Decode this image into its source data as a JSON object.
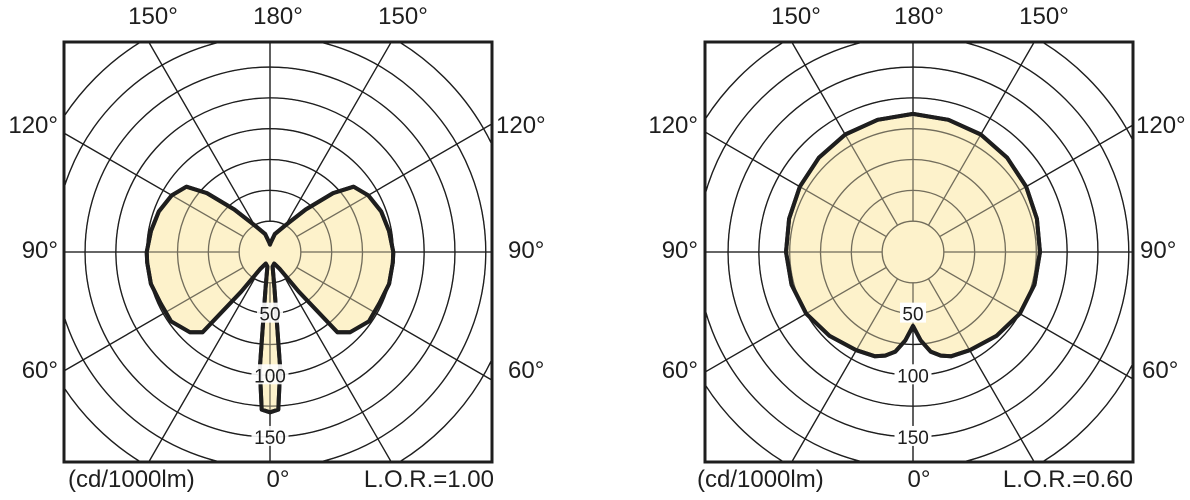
{
  "chart_data": [
    {
      "type": "polar",
      "unit_label": "(cd/1000lm)",
      "lor_label": "L.O.R.=1.00",
      "angle_labels": {
        "top_left": "150°",
        "top_center": "180°",
        "top_right": "150°",
        "upper_left": "120°",
        "upper_right": "120°",
        "mid_left": "90°",
        "mid_right": "90°",
        "lower_left": "60°",
        "lower_right": "60°",
        "bottom_center": "0°"
      },
      "radial_ticks": [
        {
          "value": 50,
          "label": "50"
        },
        {
          "value": 100,
          "label": "100"
        },
        {
          "value": 150,
          "label": "150"
        }
      ],
      "rlim": [
        0,
        150
      ],
      "spoke_step_deg": 30,
      "fill_color": "#fdf0c2",
      "curve_color": "#1e1e1e",
      "curve": [
        [
          0,
          130
        ],
        [
          3,
          128
        ],
        [
          5,
          95
        ],
        [
          7,
          30
        ],
        [
          10,
          12
        ],
        [
          20,
          10
        ],
        [
          30,
          16
        ],
        [
          36,
          40
        ],
        [
          40,
          85
        ],
        [
          45,
          92
        ],
        [
          55,
          98
        ],
        [
          65,
          98
        ],
        [
          75,
          100
        ],
        [
          85,
          100
        ],
        [
          90,
          100
        ],
        [
          100,
          98
        ],
        [
          110,
          96
        ],
        [
          120,
          92
        ],
        [
          128,
          86
        ],
        [
          133,
          70
        ],
        [
          140,
          45
        ],
        [
          150,
          25
        ],
        [
          165,
          15
        ],
        [
          175,
          8
        ],
        [
          180,
          6
        ],
        [
          185,
          8
        ],
        [
          195,
          15
        ],
        [
          210,
          25
        ],
        [
          220,
          45
        ],
        [
          227,
          70
        ],
        [
          232,
          86
        ],
        [
          240,
          92
        ],
        [
          250,
          96
        ],
        [
          260,
          98
        ],
        [
          270,
          100
        ],
        [
          275,
          100
        ],
        [
          285,
          100
        ],
        [
          295,
          98
        ],
        [
          305,
          98
        ],
        [
          315,
          92
        ],
        [
          320,
          85
        ],
        [
          324,
          40
        ],
        [
          330,
          16
        ],
        [
          340,
          10
        ],
        [
          350,
          12
        ],
        [
          353,
          30
        ],
        [
          355,
          95
        ],
        [
          357,
          128
        ],
        [
          360,
          130
        ]
      ]
    },
    {
      "type": "polar",
      "unit_label": "(cd/1000lm)",
      "lor_label": "L.O.R.=0.60",
      "angle_labels": {
        "top_left": "150°",
        "top_center": "180°",
        "top_right": "150°",
        "upper_left": "120°",
        "upper_right": "120°",
        "mid_left": "90°",
        "mid_right": "90°",
        "lower_left": "60°",
        "lower_right": "60°",
        "bottom_center": "0°"
      },
      "radial_ticks": [
        {
          "value": 50,
          "label": "50"
        },
        {
          "value": 100,
          "label": "100"
        },
        {
          "value": 150,
          "label": "150"
        }
      ],
      "rlim": [
        0,
        150
      ],
      "spoke_step_deg": 30,
      "fill_color": "#fdf0c2",
      "curve_color": "#1e1e1e",
      "curve": [
        [
          0,
          60
        ],
        [
          5,
          72
        ],
        [
          10,
          82
        ],
        [
          15,
          87
        ],
        [
          20,
          90
        ],
        [
          30,
          92
        ],
        [
          45,
          96
        ],
        [
          60,
          100
        ],
        [
          75,
          102
        ],
        [
          90,
          103
        ],
        [
          105,
          104
        ],
        [
          120,
          106
        ],
        [
          135,
          108
        ],
        [
          150,
          110
        ],
        [
          165,
          111
        ],
        [
          180,
          112
        ],
        [
          195,
          111
        ],
        [
          210,
          110
        ],
        [
          225,
          108
        ],
        [
          240,
          106
        ],
        [
          255,
          104
        ],
        [
          270,
          103
        ],
        [
          285,
          102
        ],
        [
          300,
          100
        ],
        [
          315,
          96
        ],
        [
          330,
          92
        ],
        [
          340,
          90
        ],
        [
          345,
          87
        ],
        [
          350,
          82
        ],
        [
          355,
          72
        ],
        [
          360,
          60
        ]
      ]
    }
  ]
}
